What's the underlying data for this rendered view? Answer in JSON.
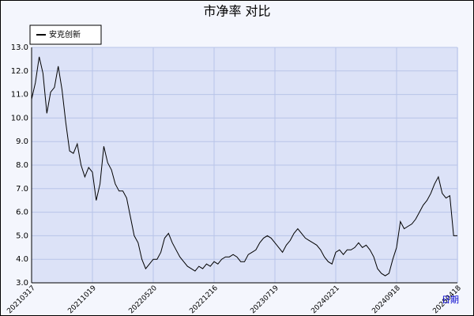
{
  "chart_data": {
    "type": "line",
    "title": "市净率  对比",
    "xlabel": "日期",
    "categories": [
      "20210317",
      null,
      null,
      null,
      null,
      null,
      null,
      null,
      null,
      null,
      null,
      null,
      null,
      null,
      null,
      null,
      "20211019",
      null,
      null,
      null,
      null,
      null,
      null,
      null,
      null,
      null,
      null,
      null,
      null,
      null,
      null,
      null,
      "20220520",
      null,
      null,
      null,
      null,
      null,
      null,
      null,
      null,
      null,
      null,
      null,
      null,
      null,
      null,
      null,
      "20221216",
      null,
      null,
      null,
      null,
      null,
      null,
      null,
      null,
      null,
      null,
      null,
      null,
      null,
      null,
      null,
      "20230719",
      null,
      null,
      null,
      null,
      null,
      null,
      null,
      null,
      null,
      null,
      null,
      null,
      null,
      null,
      null,
      "20240221",
      null,
      null,
      null,
      null,
      null,
      null,
      null,
      null,
      null,
      null,
      null,
      null,
      null,
      null,
      null,
      "20240918",
      null,
      null,
      null,
      null,
      null,
      null,
      null,
      null,
      null,
      null,
      null,
      null,
      null,
      null,
      null,
      "20250418"
    ],
    "series": [
      {
        "name": "安克创新",
        "color": "#000000",
        "values": [
          10.8,
          11.5,
          12.6,
          11.9,
          10.2,
          11.1,
          11.3,
          12.2,
          11.2,
          9.8,
          8.6,
          8.5,
          8.9,
          8.0,
          7.5,
          7.9,
          7.7,
          6.5,
          7.2,
          8.8,
          8.1,
          7.8,
          7.2,
          6.9,
          6.9,
          6.6,
          5.8,
          5.0,
          4.7,
          4.0,
          3.6,
          3.8,
          4.0,
          4.0,
          4.3,
          4.9,
          5.1,
          4.7,
          4.4,
          4.1,
          3.9,
          3.7,
          3.6,
          3.5,
          3.7,
          3.6,
          3.8,
          3.7,
          3.9,
          3.8,
          4.0,
          4.1,
          4.1,
          4.2,
          4.1,
          3.9,
          3.9,
          4.2,
          4.3,
          4.4,
          4.7,
          4.9,
          5.0,
          4.9,
          4.7,
          4.5,
          4.3,
          4.6,
          4.8,
          5.1,
          5.3,
          5.1,
          4.9,
          4.8,
          4.7,
          4.6,
          4.4,
          4.1,
          3.9,
          3.8,
          4.3,
          4.4,
          4.2,
          4.4,
          4.4,
          4.5,
          4.7,
          4.5,
          4.6,
          4.4,
          4.1,
          3.6,
          3.4,
          3.3,
          3.4,
          4.0,
          4.5,
          5.6,
          5.3,
          5.4,
          5.5,
          5.7,
          6.0,
          6.3,
          6.5,
          6.8,
          7.2,
          7.5,
          6.8,
          6.6,
          6.7,
          5.0,
          5.0
        ]
      }
    ],
    "ylim": [
      3,
      13
    ],
    "yticks": [
      {
        "value": 3,
        "label": "3.0"
      },
      {
        "value": 4,
        "label": "4.0"
      },
      {
        "value": 5,
        "label": "5.0"
      },
      {
        "value": 6,
        "label": "6.0"
      },
      {
        "value": 7,
        "label": "7.0"
      },
      {
        "value": 8,
        "label": "8.0"
      },
      {
        "value": 9,
        "label": "9.0"
      },
      {
        "value": 10,
        "label": "10.0"
      },
      {
        "value": 11,
        "label": "11.0"
      },
      {
        "value": 12,
        "label": "12.0"
      },
      {
        "value": 13,
        "label": "13.0"
      }
    ],
    "grid": true,
    "legend": "upper left"
  }
}
